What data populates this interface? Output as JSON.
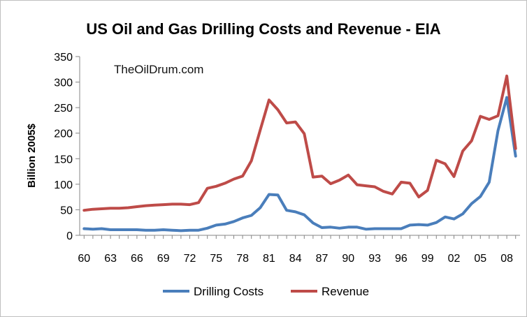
{
  "chart_data": {
    "type": "line",
    "title": "US Oil and Gas Drilling Costs and Revenue - EIA",
    "ylabel": "Billion 2005$",
    "xlabel": "",
    "watermark": "TheOilDrum.com",
    "ylim": [
      0,
      350
    ],
    "yticks": [
      0,
      50,
      100,
      150,
      200,
      250,
      300,
      350
    ],
    "x": [
      1960,
      1961,
      1962,
      1963,
      1964,
      1965,
      1966,
      1967,
      1968,
      1969,
      1970,
      1971,
      1972,
      1973,
      1974,
      1975,
      1976,
      1977,
      1978,
      1979,
      1980,
      1981,
      1982,
      1983,
      1984,
      1985,
      1986,
      1987,
      1988,
      1989,
      1990,
      1991,
      1992,
      1993,
      1994,
      1995,
      1996,
      1997,
      1998,
      1999,
      2000,
      2001,
      2002,
      2003,
      2004,
      2005,
      2006,
      2007,
      2008,
      2009
    ],
    "xticks": [
      {
        "x": 1960,
        "label": "60"
      },
      {
        "x": 1963,
        "label": "63"
      },
      {
        "x": 1966,
        "label": "66"
      },
      {
        "x": 1969,
        "label": "69"
      },
      {
        "x": 1972,
        "label": "72"
      },
      {
        "x": 1975,
        "label": "75"
      },
      {
        "x": 1978,
        "label": "78"
      },
      {
        "x": 1981,
        "label": "81"
      },
      {
        "x": 1984,
        "label": "84"
      },
      {
        "x": 1987,
        "label": "87"
      },
      {
        "x": 1990,
        "label": "90"
      },
      {
        "x": 1993,
        "label": "93"
      },
      {
        "x": 1996,
        "label": "96"
      },
      {
        "x": 1999,
        "label": "99"
      },
      {
        "x": 2002,
        "label": "02"
      },
      {
        "x": 2005,
        "label": "05"
      },
      {
        "x": 2008,
        "label": "08"
      }
    ],
    "series": [
      {
        "name": "Drilling Costs",
        "color": "#4a7ebb",
        "values": [
          13,
          12,
          13,
          11,
          11,
          11,
          11,
          10,
          10,
          11,
          10,
          9,
          10,
          10,
          14,
          20,
          22,
          27,
          34,
          39,
          54,
          80,
          79,
          49,
          46,
          40,
          24,
          15,
          16,
          14,
          16,
          16,
          12,
          13,
          13,
          13,
          13,
          20,
          21,
          20,
          25,
          36,
          32,
          42,
          62,
          76,
          104,
          205,
          270,
          155
        ]
      },
      {
        "name": "Revenue",
        "color": "#be4b48",
        "values": [
          49,
          51,
          52,
          53,
          53,
          54,
          56,
          58,
          59,
          60,
          61,
          61,
          60,
          64,
          92,
          96,
          102,
          110,
          116,
          146,
          206,
          265,
          246,
          220,
          222,
          199,
          114,
          116,
          101,
          108,
          118,
          99,
          97,
          95,
          86,
          81,
          104,
          102,
          75,
          88,
          147,
          140,
          115,
          165,
          185,
          233,
          227,
          234,
          312,
          170
        ]
      }
    ],
    "legend_position": "bottom",
    "grid": false
  }
}
